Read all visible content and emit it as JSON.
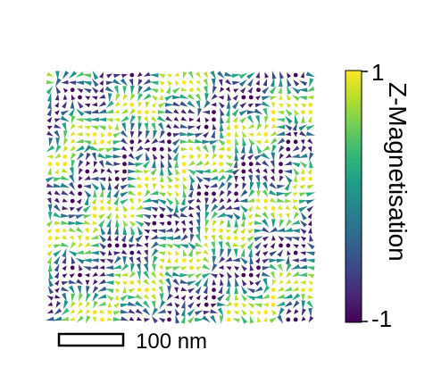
{
  "colorbar": {
    "label": "Z-Magnetisation",
    "max_label": "1",
    "min_label": "-1",
    "range": [
      -1,
      1
    ],
    "colormap": [
      "#440154",
      "#482878",
      "#3e4989",
      "#31688e",
      "#26828e",
      "#1f9e89",
      "#35b779",
      "#6ece58",
      "#b5de2b",
      "#fde725"
    ]
  },
  "scalebar": {
    "label": "100 nm"
  },
  "field": {
    "grid_columns": 36,
    "grid_rows": 34,
    "pattern": "periodic skyrmion-like lattice of in-plane arrows colored by z-magnetisation"
  }
}
